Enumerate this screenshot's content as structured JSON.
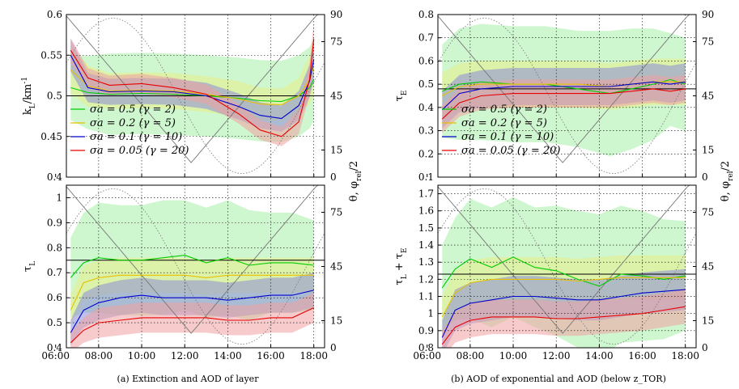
{
  "colors": {
    "s05": "#00cc00",
    "s02": "#e6c000",
    "s01": "#0000cc",
    "s005": "#e60000",
    "band_s05": "#a8f0a8",
    "band_s02": "#e8ee88",
    "band_s01": "#8c8cd8",
    "band_s005": "#f0a0a0",
    "geometry": "#777777"
  },
  "captions": {
    "a": "(a) Extinction and AOD of layer",
    "b": "(b) AOD of exponential and AOD (below z_TOR)"
  },
  "chart_data": [
    {
      "panel": "a-top",
      "type": "line",
      "ylabel": "k_L/km^-1",
      "y2label": "θ, φ_rel/2",
      "ylim": [
        0.4,
        0.6
      ],
      "yticks": [
        "0.4",
        "0.45",
        "0.5",
        "0.55",
        "0.6"
      ],
      "y2lim": [
        0,
        90
      ],
      "y2ticks": [
        "0",
        "15",
        "45",
        "75",
        "90"
      ],
      "xlim": [
        6.5,
        18.5
      ],
      "xticks": [
        "06:00",
        "08:00",
        "10:00",
        "12:00",
        "14:00",
        "16:00",
        "18:00"
      ],
      "reference_line": 0.5,
      "legend": [
        "σa = 0.5 (γ = 2)",
        "σa = 0.2 (γ = 5)",
        "σa = 0.1 (γ = 10)",
        "σa = 0.05 (γ = 20)"
      ],
      "x": [
        6.7,
        7.5,
        8.5,
        10,
        11.5,
        13,
        14.5,
        15.5,
        16.5,
        17.3,
        17.8,
        18
      ],
      "series": [
        {
          "key": "s05",
          "values": [
            0.51,
            0.504,
            0.502,
            0.503,
            0.502,
            0.5,
            0.497,
            0.494,
            0.493,
            0.5,
            0.51,
            0.52
          ],
          "spread": [
            0.04,
            0.045,
            0.05,
            0.05,
            0.05,
            0.05,
            0.05,
            0.05,
            0.05,
            0.05,
            0.05,
            0.05
          ]
        },
        {
          "key": "s02",
          "values": [
            0.532,
            0.512,
            0.506,
            0.507,
            0.506,
            0.502,
            0.496,
            0.49,
            0.489,
            0.5,
            0.52,
            0.535
          ],
          "spread": [
            0.03,
            0.025,
            0.022,
            0.022,
            0.022,
            0.022,
            0.022,
            0.02,
            0.02,
            0.022,
            0.03,
            0.035
          ]
        },
        {
          "key": "s01",
          "values": [
            0.55,
            0.51,
            0.505,
            0.506,
            0.505,
            0.5,
            0.487,
            0.476,
            0.472,
            0.488,
            0.518,
            0.545
          ],
          "spread": [
            0.02,
            0.018,
            0.016,
            0.016,
            0.016,
            0.016,
            0.016,
            0.016,
            0.016,
            0.018,
            0.02,
            0.025
          ]
        },
        {
          "key": "s005",
          "values": [
            0.556,
            0.522,
            0.513,
            0.515,
            0.51,
            0.502,
            0.478,
            0.458,
            0.45,
            0.468,
            0.52,
            0.57
          ],
          "spread": [
            0.015,
            0.012,
            0.012,
            0.012,
            0.012,
            0.012,
            0.012,
            0.012,
            0.012,
            0.015,
            0.02,
            0.02
          ]
        }
      ]
    },
    {
      "panel": "a-bottom",
      "type": "line",
      "ylabel": "τ_L",
      "ylim": [
        0.4,
        1.05
      ],
      "yticks": [
        "0.4",
        "0.5",
        "0.6",
        "0.7",
        "0.8",
        "0.9",
        "1"
      ],
      "y2lim": [
        0,
        90
      ],
      "y2ticks": [
        "0",
        "15",
        "45",
        "75"
      ],
      "xlim": [
        6.5,
        18.5
      ],
      "xticks": [
        "06:00",
        "08:00",
        "10:00",
        "12:00",
        "14:00",
        "16:00",
        "18:00"
      ],
      "reference_line": 0.75,
      "x": [
        6.7,
        7.3,
        8,
        9,
        10,
        11,
        12,
        13,
        14,
        15,
        16,
        17,
        18
      ],
      "series": [
        {
          "key": "s05",
          "values": [
            0.68,
            0.74,
            0.76,
            0.75,
            0.75,
            0.76,
            0.77,
            0.74,
            0.76,
            0.73,
            0.74,
            0.74,
            0.73
          ],
          "spread": [
            0.16,
            0.2,
            0.22,
            0.22,
            0.22,
            0.23,
            0.22,
            0.22,
            0.23,
            0.22,
            0.2,
            0.2,
            0.18
          ]
        },
        {
          "key": "s02",
          "values": [
            0.55,
            0.66,
            0.68,
            0.69,
            0.69,
            0.69,
            0.69,
            0.68,
            0.69,
            0.69,
            0.69,
            0.69,
            0.69
          ],
          "spread": [
            0.06,
            0.07,
            0.07,
            0.07,
            0.07,
            0.07,
            0.07,
            0.07,
            0.07,
            0.07,
            0.07,
            0.07,
            0.07
          ]
        },
        {
          "key": "s01",
          "values": [
            0.46,
            0.55,
            0.58,
            0.6,
            0.61,
            0.6,
            0.6,
            0.6,
            0.59,
            0.6,
            0.61,
            0.61,
            0.63
          ],
          "spread": [
            0.05,
            0.07,
            0.07,
            0.07,
            0.07,
            0.07,
            0.07,
            0.07,
            0.07,
            0.07,
            0.07,
            0.07,
            0.07
          ]
        },
        {
          "key": "s005",
          "values": [
            0.42,
            0.47,
            0.5,
            0.51,
            0.52,
            0.52,
            0.52,
            0.52,
            0.51,
            0.51,
            0.52,
            0.52,
            0.56
          ],
          "spread": [
            0.04,
            0.05,
            0.06,
            0.06,
            0.06,
            0.06,
            0.06,
            0.06,
            0.06,
            0.06,
            0.06,
            0.06,
            0.06
          ]
        }
      ]
    },
    {
      "panel": "b-top",
      "type": "line",
      "ylabel": "τ_E",
      "y2label": "θ, φ_rel/2",
      "ylim": [
        0.1,
        0.8
      ],
      "yticks": [
        "0.1",
        "0.2",
        "0.3",
        "0.4",
        "0.5",
        "0.6",
        "0.7",
        "0.8"
      ],
      "y2lim": [
        0,
        90
      ],
      "y2ticks": [
        "0",
        "15",
        "45",
        "75",
        "90"
      ],
      "xlim": [
        6.5,
        18.5
      ],
      "xticks": [
        "06:00",
        "08:00",
        "10:00",
        "12:00",
        "14:00",
        "16:00",
        "18:00"
      ],
      "reference_line": 0.48,
      "legend": [
        "σa = 0.5 (γ = 2)",
        "σa = 0.2 (γ = 5)",
        "σa = 0.1 (γ = 10)",
        "σa = 0.05 (γ = 20)"
      ],
      "x": [
        6.7,
        7.5,
        8.5,
        10,
        11.5,
        13,
        14.5,
        15.5,
        16.5,
        17.3,
        18
      ],
      "series": [
        {
          "key": "s05",
          "values": [
            0.47,
            0.5,
            0.51,
            0.5,
            0.5,
            0.48,
            0.46,
            0.48,
            0.5,
            0.52,
            0.5
          ],
          "spread": [
            0.2,
            0.24,
            0.25,
            0.25,
            0.25,
            0.25,
            0.27,
            0.26,
            0.24,
            0.2,
            0.2
          ]
        },
        {
          "key": "s02",
          "values": [
            0.45,
            0.49,
            0.5,
            0.5,
            0.5,
            0.5,
            0.49,
            0.5,
            0.51,
            0.51,
            0.51
          ],
          "spread": [
            0.1,
            0.1,
            0.1,
            0.1,
            0.1,
            0.1,
            0.1,
            0.1,
            0.1,
            0.1,
            0.1
          ]
        },
        {
          "key": "s01",
          "values": [
            0.39,
            0.46,
            0.48,
            0.49,
            0.49,
            0.49,
            0.49,
            0.5,
            0.51,
            0.5,
            0.51
          ],
          "spread": [
            0.08,
            0.08,
            0.08,
            0.08,
            0.08,
            0.08,
            0.08,
            0.08,
            0.08,
            0.08,
            0.08
          ]
        },
        {
          "key": "s005",
          "values": [
            0.35,
            0.42,
            0.45,
            0.46,
            0.46,
            0.46,
            0.46,
            0.47,
            0.48,
            0.47,
            0.48
          ],
          "spread": [
            0.06,
            0.06,
            0.06,
            0.06,
            0.06,
            0.06,
            0.06,
            0.06,
            0.06,
            0.06,
            0.06
          ]
        }
      ]
    },
    {
      "panel": "b-bottom",
      "type": "line",
      "ylabel": "τ_L + τ_E",
      "ylim": [
        0.8,
        1.75
      ],
      "yticks": [
        "0.8",
        "0.9",
        "1",
        "1.1",
        "1.2",
        "1.3",
        "1.4",
        "1.5",
        "1.6",
        "1.7"
      ],
      "y2lim": [
        0,
        90
      ],
      "y2ticks": [
        "0",
        "15",
        "45",
        "75"
      ],
      "xlim": [
        6.5,
        18.5
      ],
      "xticks": [
        "06:00",
        "08:00",
        "10:00",
        "12:00",
        "14:00",
        "16:00",
        "18:00"
      ],
      "reference_line": 1.23,
      "x": [
        6.7,
        7.3,
        8,
        9,
        10,
        11,
        12,
        13,
        14,
        15,
        16,
        17,
        18
      ],
      "series": [
        {
          "key": "s05",
          "values": [
            1.15,
            1.26,
            1.32,
            1.27,
            1.33,
            1.27,
            1.25,
            1.2,
            1.16,
            1.23,
            1.22,
            1.2,
            1.22
          ],
          "spread": [
            0.25,
            0.3,
            0.35,
            0.35,
            0.35,
            0.35,
            0.38,
            0.4,
            0.42,
            0.4,
            0.38,
            0.35,
            0.32
          ]
        },
        {
          "key": "s02",
          "values": [
            0.98,
            1.12,
            1.18,
            1.2,
            1.2,
            1.2,
            1.2,
            1.19,
            1.2,
            1.21,
            1.21,
            1.21,
            1.21
          ],
          "spread": [
            0.12,
            0.13,
            0.13,
            0.13,
            0.13,
            0.13,
            0.13,
            0.13,
            0.13,
            0.13,
            0.13,
            0.13,
            0.13
          ]
        },
        {
          "key": "s01",
          "values": [
            0.86,
            1.02,
            1.06,
            1.08,
            1.1,
            1.1,
            1.09,
            1.08,
            1.08,
            1.1,
            1.12,
            1.13,
            1.14
          ],
          "spread": [
            0.1,
            0.12,
            0.12,
            0.12,
            0.12,
            0.12,
            0.12,
            0.12,
            0.12,
            0.12,
            0.12,
            0.12,
            0.12
          ]
        },
        {
          "key": "s005",
          "values": [
            0.82,
            0.92,
            0.96,
            0.98,
            0.98,
            0.98,
            0.97,
            0.97,
            0.98,
            0.99,
            1.0,
            1.02,
            1.04
          ],
          "spread": [
            0.08,
            0.09,
            0.1,
            0.1,
            0.1,
            0.1,
            0.1,
            0.1,
            0.1,
            0.1,
            0.1,
            0.1,
            0.1
          ]
        }
      ]
    }
  ]
}
